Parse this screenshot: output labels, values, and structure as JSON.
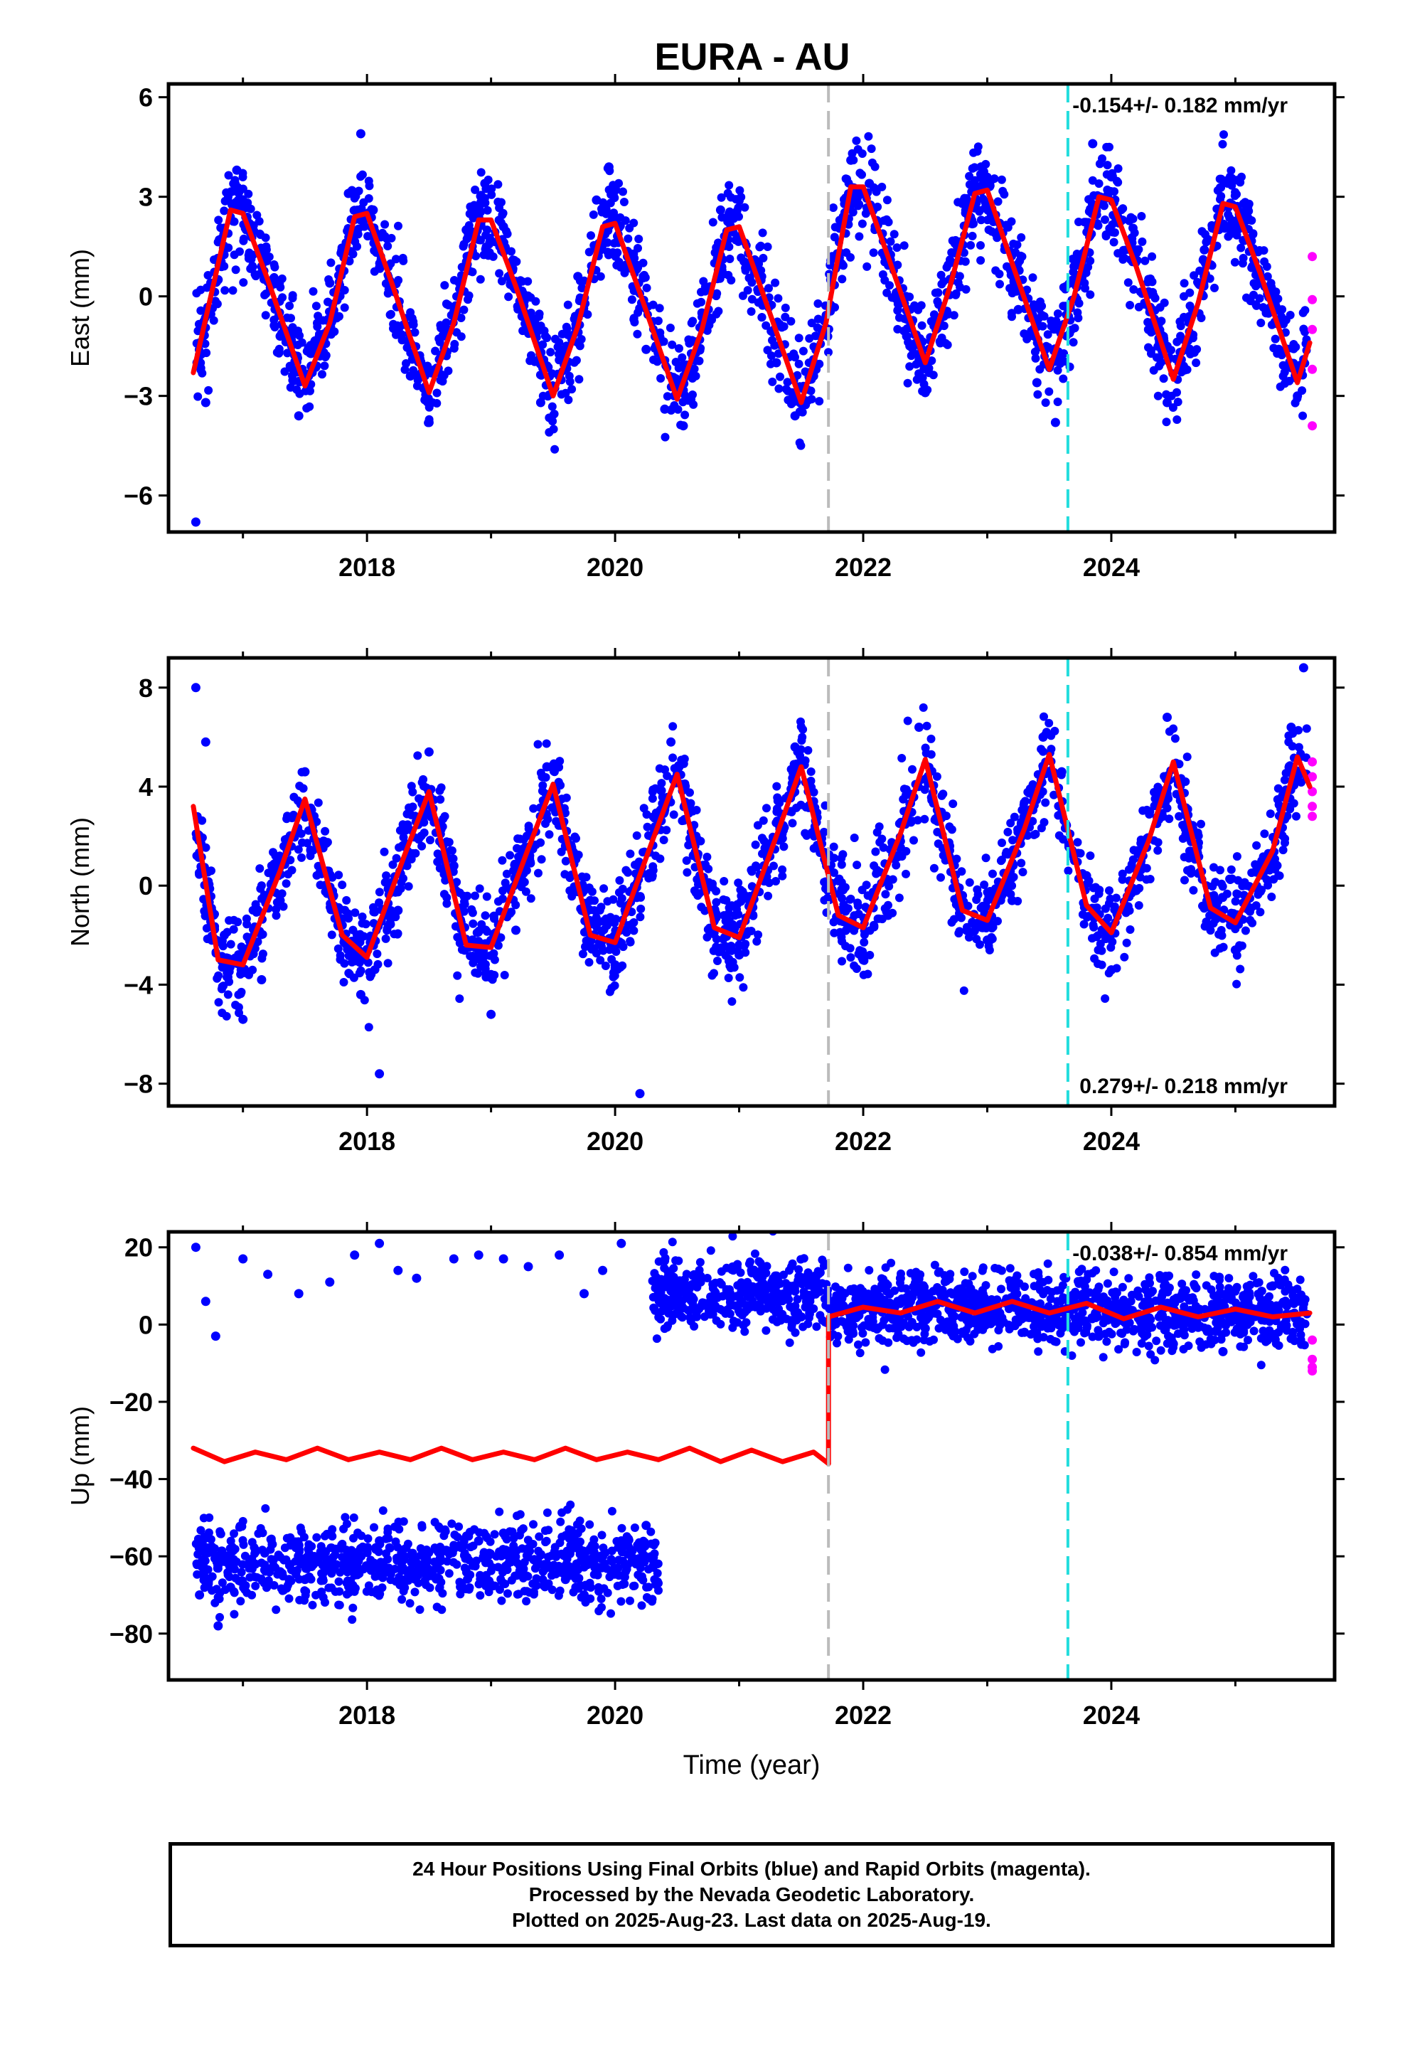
{
  "title": "EURA - AU",
  "footer": {
    "line1": "24 Hour Positions Using Final Orbits (blue) and Rapid Orbits (magenta).",
    "line2": "Processed by the Nevada Geodetic Laboratory.",
    "line3": "Plotted on 2025-Aug-23. Last data on 2025-Aug-19."
  },
  "colors": {
    "final_orbits": "#0000ff",
    "rapid_orbits": "#ff00ff",
    "model": "#ff0000",
    "event_gray": "#bbbbbb",
    "event_cyan": "#22dddd"
  },
  "chart_data": [
    {
      "type": "scatter",
      "ylabel": "East (mm)",
      "xlabel": "",
      "xlim": [
        2016.4,
        2025.8
      ],
      "ylim": [
        -7.1,
        6.4
      ],
      "xticks": [
        2018,
        2020,
        2022,
        2024
      ],
      "yticks": [
        -6,
        -3,
        0,
        3,
        6
      ],
      "rate_label": "-0.154+/- 0.182 mm/yr",
      "rate_position": "top-right",
      "event_lines": [
        {
          "x": 2021.72,
          "color": "gray"
        },
        {
          "x": 2023.65,
          "color": "cyan"
        }
      ],
      "model": {
        "type": "line",
        "color": "red",
        "x": [
          2016.6,
          2016.9,
          2017.0,
          2017.2,
          2017.5,
          2017.7,
          2017.9,
          2018.0,
          2018.2,
          2018.5,
          2018.7,
          2018.9,
          2019.0,
          2019.2,
          2019.5,
          2019.7,
          2019.9,
          2020.0,
          2020.2,
          2020.5,
          2020.7,
          2020.9,
          2021.0,
          2021.2,
          2021.5,
          2021.7,
          2021.9,
          2022.0,
          2022.2,
          2022.5,
          2022.7,
          2022.9,
          2023.0,
          2023.2,
          2023.5,
          2023.7,
          2023.9,
          2024.0,
          2024.2,
          2024.5,
          2024.7,
          2024.9,
          2025.0,
          2025.2,
          2025.5,
          2025.6
        ],
        "y": [
          -2.3,
          2.6,
          2.5,
          0.5,
          -2.7,
          -0.8,
          2.4,
          2.5,
          0.4,
          -2.9,
          -0.8,
          2.3,
          2.3,
          0.3,
          -3.0,
          -0.9,
          2.1,
          2.2,
          0.1,
          -3.1,
          -1.0,
          2.0,
          2.1,
          0.0,
          -3.2,
          -0.8,
          3.3,
          3.3,
          1.2,
          -2.0,
          0.3,
          3.1,
          3.2,
          1.0,
          -2.2,
          0.0,
          3.0,
          2.9,
          0.9,
          -2.5,
          -0.2,
          2.8,
          2.7,
          0.7,
          -2.6,
          -1.4
        ]
      },
      "series": [
        {
          "name": "Final Orbits",
          "color": "blue",
          "x": [
            2016.62,
            2016.7,
            2016.8,
            2016.95,
            2017.05,
            2017.15,
            2017.3,
            2017.45,
            2017.55,
            2017.7,
            2017.85,
            2017.95,
            2018.05,
            2018.2,
            2018.35,
            2018.5,
            2018.65,
            2018.8,
            2018.95,
            2019.1,
            2019.25,
            2019.4,
            2019.55,
            2019.7,
            2019.85,
            2019.95,
            2020.1,
            2020.25,
            2020.4,
            2020.55,
            2020.7,
            2020.85,
            2021.0,
            2021.15,
            2021.3,
            2021.45,
            2021.6,
            2021.75,
            2021.9,
            2022.05,
            2022.2,
            2022.35,
            2022.5,
            2022.65,
            2022.8,
            2022.95,
            2023.1,
            2023.25,
            2023.4,
            2023.55,
            2023.7,
            2023.85,
            2024.0,
            2024.15,
            2024.3,
            2024.45,
            2024.6,
            2024.75,
            2024.9,
            2025.05,
            2025.2,
            2025.35,
            2025.5
          ],
          "y": [
            -6.8,
            -3.2,
            0.5,
            3.8,
            2.2,
            0.9,
            -1.2,
            -3.6,
            -2.1,
            0.4,
            3.1,
            4.9,
            2.6,
            0.2,
            -2.4,
            -3.8,
            -1.0,
            2.0,
            3.4,
            2.1,
            -0.6,
            -3.2,
            -2.4,
            0.6,
            2.9,
            3.9,
            1.2,
            -1.6,
            -3.4,
            -3.9,
            -0.5,
            2.6,
            1.8,
            0.2,
            -2.0,
            -3.6,
            -2.4,
            1.2,
            4.1,
            3.4,
            1.4,
            -1.2,
            -2.9,
            -0.6,
            2.8,
            3.9,
            2.2,
            -0.4,
            -2.6,
            -3.8,
            0.9,
            4.6,
            3.6,
            1.6,
            -1.0,
            -3.2,
            -1.6,
            1.4,
            2.7,
            2.2,
            0.6,
            -1.6,
            -3.0
          ]
        },
        {
          "name": "Rapid Orbits",
          "color": "magenta",
          "x": [
            2025.62,
            2025.62,
            2025.62,
            2025.62,
            2025.62
          ],
          "y": [
            1.2,
            -0.1,
            -1.0,
            -2.2,
            -3.9
          ]
        }
      ]
    },
    {
      "type": "scatter",
      "ylabel": "North (mm)",
      "xlabel": "",
      "xlim": [
        2016.4,
        2025.8
      ],
      "ylim": [
        -8.9,
        9.2
      ],
      "xticks": [
        2018,
        2020,
        2022,
        2024
      ],
      "yticks": [
        -8,
        -4,
        0,
        4,
        8
      ],
      "rate_label": "0.279+/- 0.218 mm/yr",
      "rate_position": "bottom-right",
      "event_lines": [
        {
          "x": 2021.72,
          "color": "gray"
        },
        {
          "x": 2023.65,
          "color": "cyan"
        }
      ],
      "model": {
        "type": "line",
        "color": "red",
        "x": [
          2016.6,
          2016.8,
          2017.0,
          2017.3,
          2017.5,
          2017.8,
          2018.0,
          2018.3,
          2018.5,
          2018.8,
          2019.0,
          2019.3,
          2019.5,
          2019.8,
          2020.0,
          2020.3,
          2020.5,
          2020.8,
          2021.0,
          2021.3,
          2021.5,
          2021.8,
          2022.0,
          2022.3,
          2022.5,
          2022.8,
          2023.0,
          2023.3,
          2023.5,
          2023.8,
          2024.0,
          2024.3,
          2024.5,
          2024.8,
          2025.0,
          2025.3,
          2025.5,
          2025.6
        ],
        "y": [
          3.2,
          -3.0,
          -3.2,
          0.6,
          3.5,
          -2.0,
          -2.9,
          1.2,
          3.8,
          -2.4,
          -2.5,
          1.5,
          4.1,
          -2.0,
          -2.3,
          1.8,
          4.5,
          -1.7,
          -2.1,
          2.0,
          4.8,
          -1.2,
          -1.7,
          2.1,
          5.1,
          -1.0,
          -1.4,
          2.3,
          5.3,
          -0.8,
          -1.9,
          1.8,
          5.0,
          -0.9,
          -1.5,
          1.4,
          5.2,
          4.0
        ]
      },
      "series": [
        {
          "name": "Final Orbits",
          "color": "blue",
          "x": [
            2016.62,
            2016.7,
            2016.85,
            2017.0,
            2017.15,
            2017.3,
            2017.5,
            2017.65,
            2017.8,
            2017.95,
            2018.1,
            2018.25,
            2018.5,
            2018.7,
            2018.85,
            2019.0,
            2019.2,
            2019.45,
            2019.6,
            2019.8,
            2020.0,
            2020.2,
            2020.45,
            2020.6,
            2020.8,
            2021.0,
            2021.2,
            2021.45,
            2021.6,
            2021.8,
            2022.0,
            2022.2,
            2022.45,
            2022.6,
            2022.8,
            2023.0,
            2023.2,
            2023.45,
            2023.6,
            2023.8,
            2024.0,
            2024.2,
            2024.45,
            2024.6,
            2024.8,
            2025.0,
            2025.2,
            2025.45,
            2025.55
          ],
          "y": [
            8.0,
            5.8,
            -2.0,
            -5.4,
            -3.8,
            -0.6,
            4.6,
            1.8,
            -1.6,
            -4.4,
            -7.6,
            -1.0,
            5.4,
            0.8,
            -2.2,
            -5.2,
            -1.8,
            4.8,
            1.6,
            -0.6,
            -3.2,
            -8.4,
            5.8,
            3.2,
            -1.4,
            -2.8,
            0.8,
            5.6,
            3.4,
            0.2,
            -3.0,
            -1.2,
            6.4,
            2.6,
            -0.4,
            -2.2,
            -0.6,
            6.0,
            4.6,
            0.4,
            -3.4,
            -0.2,
            6.8,
            3.0,
            -0.8,
            -2.6,
            0.6,
            6.4,
            8.8
          ]
        },
        {
          "name": "Rapid Orbits",
          "color": "magenta",
          "x": [
            2025.62,
            2025.62,
            2025.62,
            2025.62,
            2025.62
          ],
          "y": [
            5.0,
            4.4,
            3.8,
            3.2,
            2.8
          ]
        }
      ]
    },
    {
      "type": "scatter",
      "ylabel": "Up (mm)",
      "xlabel": "Time (year)",
      "xlim": [
        2016.4,
        2025.8
      ],
      "ylim": [
        -92,
        24
      ],
      "xticks": [
        2018,
        2020,
        2022,
        2024
      ],
      "yticks": [
        -80,
        -60,
        -40,
        -20,
        0,
        20
      ],
      "rate_label": "-0.038+/- 0.854 mm/yr",
      "rate_position": "top-right",
      "event_lines": [
        {
          "x": 2021.72,
          "color": "gray"
        },
        {
          "x": 2023.65,
          "color": "cyan"
        }
      ],
      "model": {
        "type": "line",
        "color": "red",
        "segments": [
          {
            "x": [
              2016.6,
              2016.85,
              2017.1,
              2017.35,
              2017.6,
              2017.85,
              2018.1,
              2018.35,
              2018.6,
              2018.85,
              2019.1,
              2019.35,
              2019.6,
              2019.85,
              2020.1,
              2020.35,
              2020.6,
              2020.85,
              2021.1,
              2021.35,
              2021.6,
              2021.72
            ],
            "y": [
              -32,
              -35.5,
              -33,
              -35,
              -32,
              -35,
              -33,
              -35,
              -32,
              -35,
              -33,
              -35,
              -32,
              -35,
              -33,
              -35,
              -32,
              -35.5,
              -32.5,
              -35.5,
              -33,
              -36
            ]
          },
          {
            "x": [
              2021.72,
              2021.72,
              2022.0,
              2022.3,
              2022.6,
              2022.9,
              2023.2,
              2023.5,
              2023.8,
              2024.1,
              2024.4,
              2024.7,
              2025.0,
              2025.3,
              2025.6
            ],
            "y": [
              -36,
              2,
              4.5,
              3,
              6,
              3,
              6,
              3,
              5.5,
              1.5,
              4.5,
              2,
              4,
              2,
              3
            ]
          }
        ]
      },
      "series": [
        {
          "name": "Final Orbits",
          "color": "blue",
          "x": [
            2016.62,
            2016.7,
            2016.78,
            2017.0,
            2017.2,
            2017.45,
            2017.7,
            2017.9,
            2018.1,
            2018.25,
            2018.4,
            2018.7,
            2018.9,
            2019.1,
            2019.3,
            2019.55,
            2019.75,
            2019.9,
            2020.05,
            2016.65,
            2016.8,
            2016.9,
            2017.1,
            2017.3,
            2017.5,
            2017.7,
            2017.95,
            2018.1,
            2018.3,
            2018.5,
            2018.7,
            2018.9,
            2019.1,
            2019.3,
            2019.45,
            2019.6,
            2019.75,
            2019.9,
            2020.05,
            2020.25,
            2020.35,
            2020.5,
            2020.7,
            2020.9,
            2021.1,
            2021.3,
            2021.5,
            2021.7,
            2021.9,
            2022.1,
            2022.3,
            2022.5,
            2022.7,
            2022.9,
            2023.1,
            2023.3,
            2023.5,
            2023.7,
            2023.9,
            2024.1,
            2024.3,
            2024.5,
            2024.7,
            2024.9,
            2025.1,
            2025.3,
            2025.5
          ],
          "y": [
            20,
            6,
            -3,
            17,
            13,
            8,
            11,
            18,
            21,
            14,
            12,
            17,
            18,
            17,
            15,
            18,
            8,
            14,
            21,
            -70,
            -78,
            -68,
            -62,
            -64,
            -66,
            -62,
            -58,
            -56,
            -60,
            -64,
            -58,
            -56,
            -54,
            -58,
            -62,
            -66,
            -70,
            -60,
            -56,
            -52,
            8,
            3,
            5,
            9,
            14,
            6,
            2,
            5,
            3,
            9,
            12,
            -1,
            5,
            8,
            3,
            -2,
            1,
            4,
            -3,
            2,
            6,
            -5,
            3,
            -7,
            6,
            10,
            1
          ]
        },
        {
          "name": "Rapid Orbits",
          "color": "magenta",
          "x": [
            2025.62,
            2025.62,
            2025.62,
            2025.62
          ],
          "y": [
            -4,
            -9,
            -11,
            -12
          ]
        }
      ]
    }
  ]
}
